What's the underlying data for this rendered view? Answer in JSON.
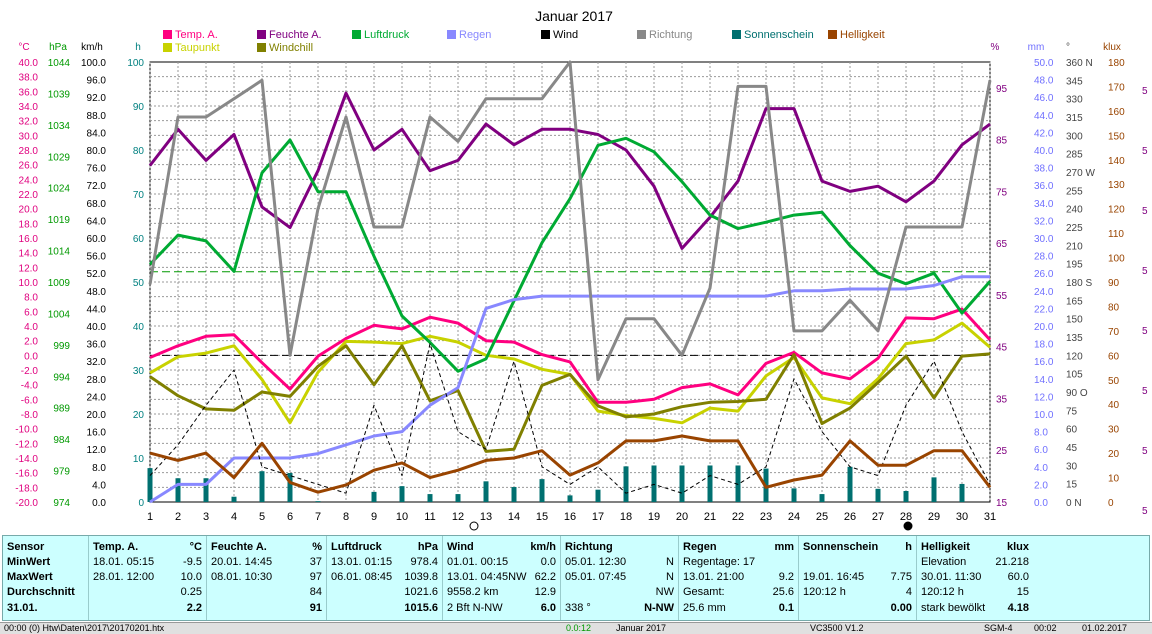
{
  "chart_data": {
    "type": "line",
    "title": "Januar 2017",
    "x": [
      1,
      2,
      3,
      4,
      5,
      6,
      7,
      8,
      9,
      10,
      11,
      12,
      13,
      14,
      15,
      16,
      17,
      18,
      19,
      20,
      21,
      22,
      23,
      24,
      25,
      26,
      27,
      28,
      29,
      30,
      31
    ],
    "xlim": [
      1,
      31
    ],
    "axes_left": [
      {
        "unit": "°C",
        "color": "#e0007f",
        "range": [
          -20,
          40
        ],
        "ticks": [
          "40.0",
          "38.0",
          "36.0",
          "34.0",
          "32.0",
          "30.0",
          "28.0",
          "26.0",
          "24.0",
          "22.0",
          "20.0",
          "18.0",
          "16.0",
          "14.0",
          "12.0",
          "10.0",
          "8.0",
          "6.0",
          "4.0",
          "2.0",
          "0.0",
          "-2.0",
          "-4.0",
          "-6.0",
          "-8.0",
          "-10.0",
          "-12.0",
          "-14.0",
          "-16.0",
          "-18.0",
          "-20.0"
        ]
      },
      {
        "unit": "hPa",
        "color": "#009900",
        "range": [
          974,
          1049
        ],
        "ticks": [
          "1044",
          "1039",
          "1034",
          "1029",
          "1024",
          "1019",
          "1014",
          "1009",
          "1004",
          "999",
          "994",
          "989",
          "984",
          "979",
          "974"
        ]
      },
      {
        "unit": "km/h",
        "color": "#000000",
        "range": [
          0,
          100
        ],
        "ticks": [
          "100.0",
          "96.0",
          "92.0",
          "88.0",
          "84.0",
          "80.0",
          "76.0",
          "72.0",
          "68.0",
          "64.0",
          "60.0",
          "56.0",
          "52.0",
          "48.0",
          "44.0",
          "40.0",
          "36.0",
          "32.0",
          "28.0",
          "24.0",
          "20.0",
          "16.0",
          "12.0",
          "8.0",
          "4.0",
          "0.0"
        ]
      },
      {
        "unit": "h",
        "color": "#008080",
        "range": [
          0,
          100
        ],
        "ticks": [
          "100",
          "90",
          "80",
          "70",
          "60",
          "50",
          "40",
          "30",
          "20",
          "10",
          "0"
        ]
      }
    ],
    "axes_right": [
      {
        "unit": "%",
        "color": "#800080",
        "range": [
          15,
          100
        ],
        "ticks": [
          "95",
          "85",
          "75",
          "65",
          "55",
          "45",
          "35",
          "25",
          "15"
        ]
      },
      {
        "unit": "mm",
        "color": "#7070ff",
        "range": [
          0,
          50
        ],
        "ticks": [
          "50.0",
          "48.0",
          "46.0",
          "44.0",
          "42.0",
          "40.0",
          "38.0",
          "36.0",
          "34.0",
          "32.0",
          "30.0",
          "28.0",
          "26.0",
          "24.0",
          "22.0",
          "20.0",
          "18.0",
          "16.0",
          "14.0",
          "12.0",
          "10.0",
          "8.0",
          "6.0",
          "4.0",
          "2.0",
          "0.0"
        ]
      },
      {
        "unit": "°",
        "color": "#444444",
        "range": [
          0,
          360
        ],
        "ticks": [
          "360 N",
          "345",
          "330",
          "315",
          "300",
          "285",
          "270 W",
          "255",
          "240",
          "225",
          "210",
          "195",
          "180 S",
          "165",
          "150",
          "135",
          "120",
          "105",
          "90 O",
          "75",
          "60",
          "45",
          "30",
          "15",
          "0 N"
        ]
      },
      {
        "unit": "klux",
        "color": "#994400",
        "range": [
          0,
          180
        ],
        "ticks": [
          "180",
          "170",
          "160",
          "150",
          "140",
          "130",
          "120",
          "110",
          "100",
          "90",
          "80",
          "70",
          "60",
          "50",
          "40",
          "30",
          "20",
          "10",
          "0"
        ]
      }
    ],
    "series": [
      {
        "name": "Temp. A.",
        "color": "#ff0080",
        "axis": "°C",
        "values": [
          -0.3,
          1.3,
          2.6,
          2.8,
          -1.0,
          -4.6,
          -0.1,
          2.3,
          4.1,
          3.6,
          5.2,
          4.4,
          2.0,
          1.8,
          0.1,
          -0.9,
          -6.4,
          -6.4,
          -6.0,
          -4.4,
          -3.9,
          -5.4,
          -1.1,
          0.4,
          -2.4,
          -3.2,
          -0.4,
          5.1,
          5.0,
          6.3,
          2.1
        ]
      },
      {
        "name": "Taupunkt",
        "color": "#c8d200",
        "axis": "°C",
        "values": [
          -2.4,
          -0.2,
          0.3,
          1.3,
          -3.3,
          -9.2,
          -2.3,
          1.9,
          1.8,
          1.6,
          2.6,
          1.8,
          0.0,
          -0.5,
          -1.9,
          -2.6,
          -7.6,
          -8.2,
          -8.6,
          -9.2,
          -7.2,
          -7.6,
          -2.8,
          -0.3,
          -5.8,
          -6.6,
          -3.2,
          1.6,
          2.1,
          4.4,
          1.1
        ]
      },
      {
        "name": "Feuchte A.",
        "color": "#800080",
        "axis": "%",
        "values": [
          80,
          87,
          81,
          86,
          72,
          68,
          79,
          94,
          83,
          87,
          79,
          81,
          88,
          84,
          87,
          87,
          86,
          83,
          76,
          64,
          70,
          77,
          91,
          91,
          77,
          75,
          76,
          73,
          77,
          84,
          88
        ]
      },
      {
        "name": "Windchill",
        "color": "#808000",
        "axis": "°C",
        "values": [
          -2.9,
          -5.5,
          -7.3,
          -7.5,
          -5.0,
          -5.6,
          -1.5,
          1.3,
          -4.0,
          1.3,
          -6.2,
          -4.8,
          -13.1,
          -12.8,
          -4.1,
          -2.6,
          -6.9,
          -8.4,
          -8.0,
          -7.0,
          -6.4,
          -6.3,
          -6.0,
          0.1,
          -9.3,
          -7.2,
          -3.7,
          -0.1,
          -5.8,
          -0.1,
          0.2
        ]
      },
      {
        "name": "Luftdruck",
        "color": "#00aa33",
        "axis": "hPa",
        "values": [
          1014.5,
          1019.5,
          1018.5,
          1013.3,
          1030.1,
          1035.7,
          1026.9,
          1026.9,
          1015.9,
          1005.7,
          1001.2,
          996.3,
          998.4,
          1008.3,
          1018.2,
          1025.7,
          1034.8,
          1036.0,
          1033.7,
          1028.6,
          1022.9,
          1020.6,
          1021.7,
          1022.9,
          1023.4,
          1017.7,
          1013.0,
          1011.2,
          1013.0,
          1006.2,
          1011.6
        ]
      },
      {
        "name": "Regen",
        "color": "#8888ff",
        "axis": "mm",
        "values": [
          0,
          2,
          2,
          5,
          5,
          5,
          5.5,
          6.5,
          7.5,
          8,
          11,
          13,
          22,
          23,
          23.4,
          23.4,
          23.4,
          23.4,
          23.4,
          23.4,
          23.4,
          23.4,
          23.4,
          24,
          24,
          24.2,
          24.2,
          24.2,
          24.6,
          25.6,
          25.6
        ]
      },
      {
        "name": "Richtung",
        "color": "#888888",
        "axis": "°",
        "values": [
          178,
          315,
          315,
          330,
          345,
          120,
          240,
          315,
          225,
          225,
          315,
          295,
          330,
          330,
          330,
          360,
          100,
          150,
          150,
          120,
          175,
          340,
          340,
          140,
          140,
          165,
          140,
          225,
          225,
          225,
          345
        ]
      },
      {
        "name": "Wind",
        "color": "#000000",
        "axis": "km/h",
        "dashed": true,
        "values": [
          6,
          13,
          22,
          30,
          8,
          6,
          4,
          2,
          22,
          6,
          36,
          16,
          12,
          32,
          8,
          4,
          8,
          2,
          4,
          2,
          6,
          4,
          8,
          28,
          16,
          8,
          6,
          22,
          32,
          16,
          4
        ]
      },
      {
        "name": "Sonnenschein",
        "color": "#007070",
        "axis": "h",
        "type": "bar",
        "values": [
          7.7,
          5.4,
          5.4,
          1.2,
          7.0,
          6.6,
          0.2,
          0,
          2.3,
          3.6,
          1.8,
          1.8,
          4.7,
          3.4,
          5.2,
          1.5,
          2.8,
          8.1,
          8.3,
          8.3,
          8.3,
          8.3,
          7.6,
          3.1,
          1.8,
          8.0,
          3.0,
          2.5,
          5.6,
          4.1,
          0
        ]
      },
      {
        "name": "Helligkeit",
        "color": "#994400",
        "axis": "klux",
        "values": [
          20,
          17,
          20,
          10,
          24,
          8,
          4,
          7,
          13,
          16,
          10,
          13,
          17,
          18,
          21,
          11,
          16,
          25,
          25,
          27,
          25,
          25,
          6,
          9,
          11,
          25,
          15,
          15,
          21,
          21,
          6
        ]
      }
    ],
    "reference_lines": [
      {
        "axis": "hPa",
        "value": 1013.25,
        "color": "#009900",
        "dashed": true
      },
      {
        "axis": "°C",
        "value": 0,
        "color": "#000000",
        "dashed": true
      }
    ],
    "grid": true,
    "legend": [
      {
        "name": "Temp. A.",
        "color": "#ff0080"
      },
      {
        "name": "Feuchte A.",
        "color": "#800080"
      },
      {
        "name": "Luftdruck",
        "color": "#00aa33"
      },
      {
        "name": "Regen",
        "color": "#8888ff"
      },
      {
        "name": "Wind",
        "color": "#000000"
      },
      {
        "name": "Richtung",
        "color": "#888888"
      },
      {
        "name": "Sonnenschein",
        "color": "#007070"
      },
      {
        "name": "Helligkeit",
        "color": "#994400"
      },
      {
        "name": "Taupunkt",
        "color": "#c8d200"
      },
      {
        "name": "Windchill",
        "color": "#808000"
      }
    ],
    "legend_placement": "top",
    "right_edge_marks": [
      "5",
      "5",
      "5",
      "5",
      "5",
      "5",
      "5",
      "5"
    ]
  },
  "stats": {
    "sensor": {
      "title": "Sensor",
      "rows": [
        "MinWert",
        "MaxWert",
        "Durchschnitt",
        "31.01."
      ]
    },
    "temp": {
      "title": "Temp. A.",
      "unit": "°C",
      "min_date": "18.01. 05:15",
      "min": "-9.5",
      "max_date": "28.01. 12:00",
      "max": "10.0",
      "avg": "0.25",
      "today": "2.2"
    },
    "feuchte": {
      "title": "Feuchte A.",
      "unit": "%",
      "min_date": "20.01. 14:45",
      "min": "37",
      "max_date": "08.01. 10:30",
      "max": "97",
      "avg": "84",
      "today": "91"
    },
    "luftdruck": {
      "title": "Luftdruck",
      "unit": "hPa",
      "min_date": "13.01. 01:15",
      "min": "978.4",
      "max_date": "06.01. 08:45",
      "max": "1039.8",
      "avg": "1021.6",
      "today": "1015.6"
    },
    "wind": {
      "title": "Wind",
      "unit": "km/h",
      "min_date": "01.01. 00:15",
      "min": "0.0",
      "max_date": "13.01. 04:45NW",
      "max": "62.2",
      "avg_label": "9558.2 km",
      "avg": "12.9",
      "today_label": "2 Bft N-NW",
      "today": "6.0"
    },
    "richtung": {
      "title": "Richtung",
      "min_date": "05.01. 12:30",
      "min": "N",
      "max_date": "05.01. 07:45",
      "max": "N",
      "avg": "NW",
      "today_label": "338 °",
      "today": "N-NW"
    },
    "regen": {
      "title": "Regen",
      "unit": "mm",
      "row1": "Regentage: 17",
      "max_date": "13.01. 21:00",
      "max": "9.2",
      "total_label": "Gesamt:",
      "total": "25.6",
      "today_label": "25.6 mm",
      "today": "0.1"
    },
    "sonne": {
      "title": "Sonnenschein",
      "unit": "h",
      "max_date": "19.01. 16:45",
      "max": "7.75",
      "avg_label": "120:12 h",
      "avg": "4",
      "today": "0.00"
    },
    "hell": {
      "title": "Helligkeit",
      "unit": "klux",
      "row1_label": "Elevation",
      "row1": "21.218",
      "max_date": "30.01. 11:30",
      "max": "60.0",
      "avg_label": "120:12 h",
      "avg": "15",
      "today_label": "stark bewölkt",
      "today": "4.18"
    }
  },
  "statusbar": [
    "00:00 (0) Htw\\Daten\\2017\\20170201.htx",
    "0.0:12",
    "Januar 2017",
    "VC3500 V1.2",
    "SGM-4",
    "00:02",
    "01.02.2017"
  ]
}
